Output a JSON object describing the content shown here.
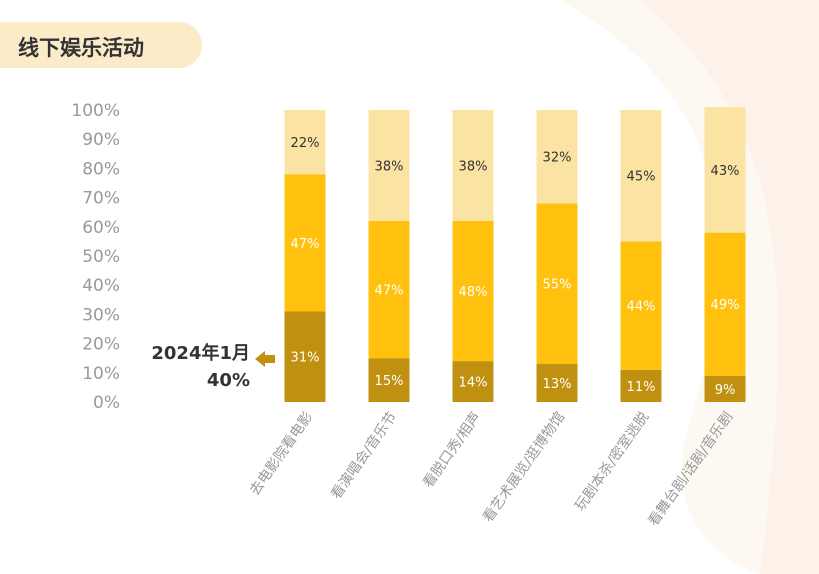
{
  "title": "线下娱乐活动",
  "callout": {
    "line1": "2024年1月",
    "line2": "40%",
    "arrow_color": "#c09010"
  },
  "colors": {
    "bottom": "#c09010",
    "middle": "#ffc10e",
    "top": "#fbe3a3",
    "label": "#333333",
    "tick": "#999999"
  },
  "chart_data": {
    "type": "bar",
    "stacked": true,
    "ylim": [
      0,
      100
    ],
    "y_ticks": [
      "0%",
      "10%",
      "20%",
      "30%",
      "40%",
      "50%",
      "60%",
      "70%",
      "80%",
      "90%",
      "100%"
    ],
    "categories": [
      "去电影院看电影",
      "看演唱会/音乐节",
      "看脱口秀/相声",
      "看艺术展览/逛博物馆",
      "玩剧本杀/密室逃脱",
      "看舞台剧/话剧/音乐剧"
    ],
    "series": [
      {
        "values": [
          31,
          15,
          14,
          13,
          11,
          9
        ],
        "labels": [
          "31%",
          "15%",
          "14%",
          "13%",
          "11%",
          "9%"
        ],
        "color": "#c09010"
      },
      {
        "values": [
          47,
          47,
          48,
          55,
          44,
          49
        ],
        "labels": [
          "47%",
          "47%",
          "48%",
          "55%",
          "44%",
          "49%"
        ],
        "color": "#ffc10e"
      },
      {
        "values": [
          22,
          38,
          38,
          32,
          45,
          43
        ],
        "labels": [
          "22%",
          "38%",
          "38%",
          "32%",
          "45%",
          "43%"
        ],
        "color": "#fbe3a3"
      }
    ]
  }
}
